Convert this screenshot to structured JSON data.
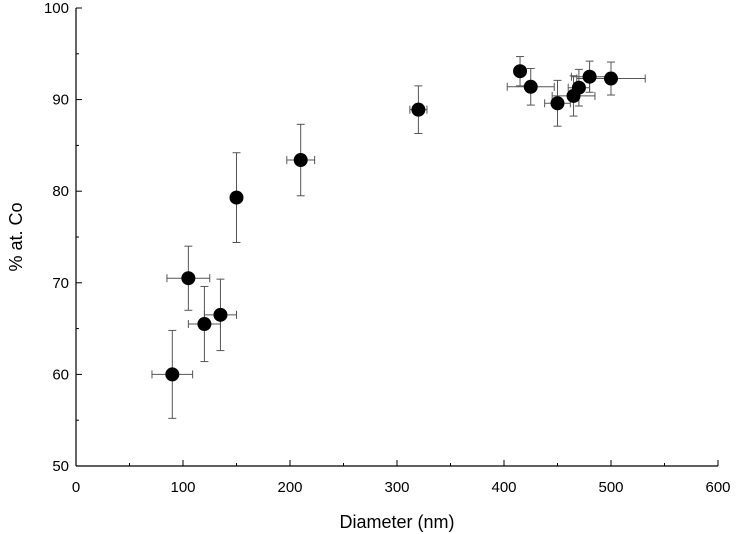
{
  "chart_data": {
    "type": "scatter",
    "title": "",
    "xlabel": "Diameter (nm)",
    "ylabel": "% at. Co",
    "xlim": [
      0,
      600
    ],
    "ylim": [
      50,
      100
    ],
    "x_ticks": [
      0,
      100,
      200,
      300,
      400,
      500,
      600
    ],
    "y_ticks": [
      50,
      60,
      70,
      80,
      90,
      100
    ],
    "x_tick_labels": [
      "0",
      "100",
      "200",
      "300",
      "400",
      "500",
      "600"
    ],
    "y_tick_labels": [
      "50",
      "60",
      "70",
      "80",
      "90",
      "100"
    ],
    "grid": false,
    "legend": "none",
    "marker_color": "#000000",
    "errorbar_color": "#555555",
    "points": [
      {
        "x": 90,
        "y": 60.0,
        "xerr": 19,
        "yerr": 4.8
      },
      {
        "x": 105,
        "y": 70.5,
        "xerr": 20,
        "yerr": 3.5
      },
      {
        "x": 120,
        "y": 65.5,
        "xerr": 15,
        "yerr": 4.1
      },
      {
        "x": 135,
        "y": 66.5,
        "xerr": 15,
        "yerr": 3.9
      },
      {
        "x": 150,
        "y": 79.3,
        "xerr": 0,
        "yerr": 4.9
      },
      {
        "x": 210,
        "y": 83.4,
        "xerr": 13,
        "yerr": 3.9
      },
      {
        "x": 320,
        "y": 88.9,
        "xerr": 8,
        "yerr": 2.6
      },
      {
        "x": 415,
        "y": 93.1,
        "xerr": 0,
        "yerr": 1.6
      },
      {
        "x": 425,
        "y": 91.4,
        "xerr": 22,
        "yerr": 2.0
      },
      {
        "x": 450,
        "y": 89.6,
        "xerr": 12,
        "yerr": 2.5
      },
      {
        "x": 465,
        "y": 90.4,
        "xerr": 20,
        "yerr": 2.2
      },
      {
        "x": 470,
        "y": 91.3,
        "xerr": 10,
        "yerr": 2.0
      },
      {
        "x": 480,
        "y": 92.5,
        "xerr": 17,
        "yerr": 1.7
      },
      {
        "x": 500,
        "y": 92.3,
        "xerr": 32,
        "yerr": 1.8
      }
    ]
  }
}
